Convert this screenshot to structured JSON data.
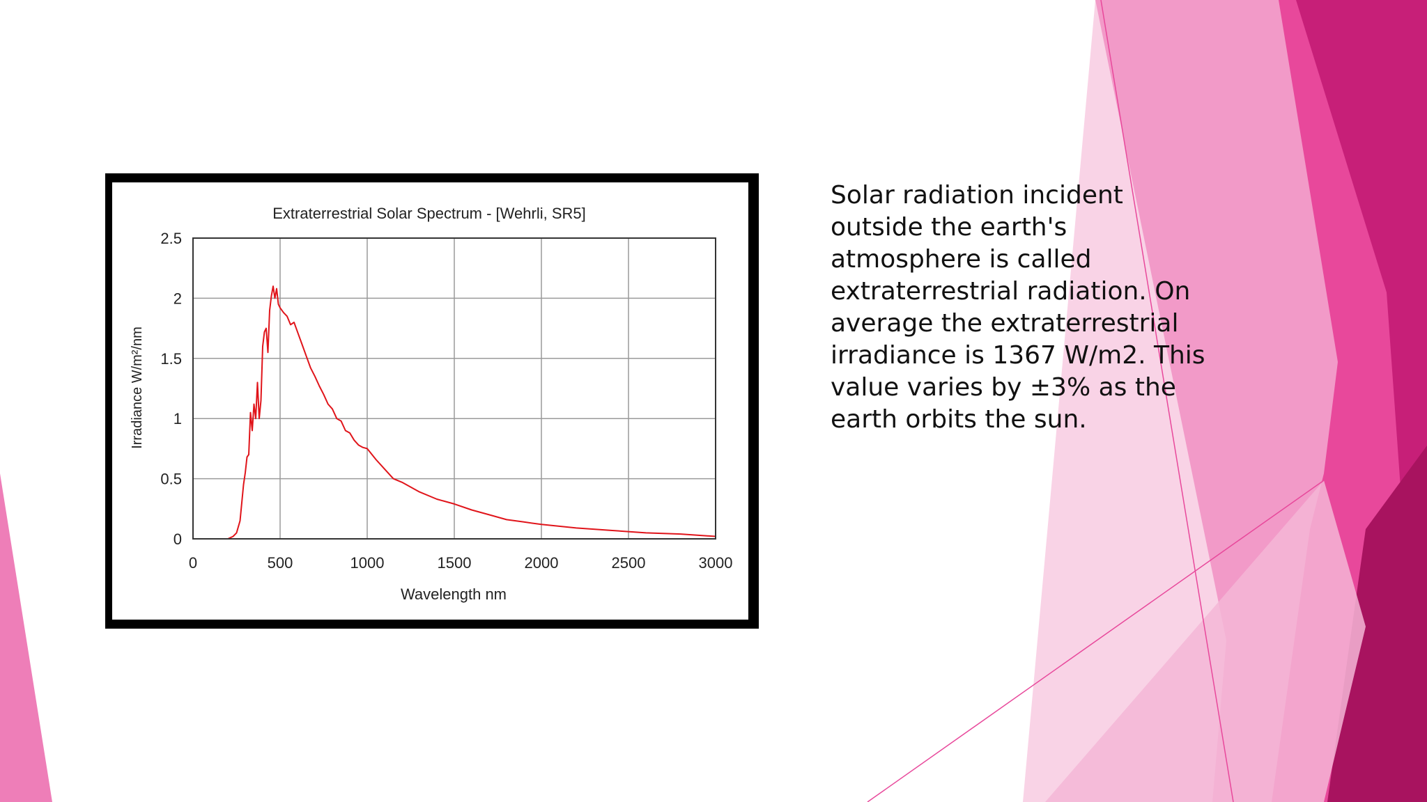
{
  "slide": {
    "body_text": "Solar radiation incident outside the earth's atmosphere is called extraterrestrial radiation. On average the extraterrestrial irradiance is 1367 W/m2. This value varies by ±3% as the earth orbits the sun."
  },
  "theme": {
    "accent_dark": "#b5186c",
    "accent_mid": "#e8489b",
    "accent_light": "#f29ac8",
    "accent_pale": "#f9d3e6"
  },
  "chart_data": {
    "type": "line",
    "title": "Extraterrestrial Solar Spectrum - [Wehrli, SR5]",
    "xlabel": "Wavelength nm",
    "ylabel": "Irradiance W/m²/nm",
    "xlim": [
      0,
      3000
    ],
    "ylim": [
      0,
      2.5
    ],
    "xticks": [
      "0",
      "500",
      "1000",
      "1500",
      "2000",
      "2500",
      "3000"
    ],
    "yticks": [
      "0",
      "0.5",
      "1",
      "1.5",
      "2",
      "2.5"
    ],
    "grid": true,
    "series_color": "#e0141a",
    "series": [
      {
        "x": [
          200,
          230,
          250,
          270,
          290,
          300,
          310,
          320,
          330,
          340,
          350,
          360,
          370,
          380,
          390,
          400,
          410,
          420,
          430,
          440,
          450,
          460,
          470,
          480,
          490,
          500,
          520,
          540,
          560,
          580,
          600,
          625,
          650,
          675,
          700,
          725,
          750,
          775,
          800,
          825,
          850,
          875,
          900,
          925,
          950,
          975,
          1000,
          1050,
          1100,
          1150,
          1200,
          1300,
          1400,
          1500,
          1600,
          1700,
          1800,
          1900,
          2000,
          2200,
          2400,
          2600,
          2800,
          3000
        ],
        "values": [
          0.0,
          0.02,
          0.05,
          0.15,
          0.45,
          0.55,
          0.68,
          0.7,
          1.05,
          0.9,
          1.12,
          1.0,
          1.3,
          1.0,
          1.15,
          1.6,
          1.72,
          1.75,
          1.55,
          1.9,
          2.02,
          2.1,
          2.0,
          2.08,
          1.95,
          1.92,
          1.88,
          1.85,
          1.78,
          1.8,
          1.72,
          1.62,
          1.52,
          1.42,
          1.35,
          1.27,
          1.2,
          1.12,
          1.08,
          1.0,
          0.98,
          0.9,
          0.88,
          0.82,
          0.78,
          0.76,
          0.75,
          0.66,
          0.58,
          0.5,
          0.47,
          0.39,
          0.33,
          0.29,
          0.24,
          0.2,
          0.16,
          0.14,
          0.12,
          0.09,
          0.07,
          0.05,
          0.04,
          0.02
        ]
      }
    ]
  }
}
